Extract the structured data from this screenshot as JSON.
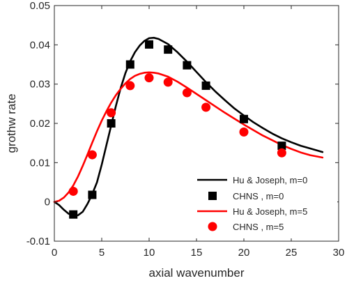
{
  "chart_data": {
    "type": "line",
    "title": "",
    "xlabel": "axial wavenumber",
    "ylabel": "grothw rate",
    "xlim": [
      0,
      30
    ],
    "ylim": [
      -0.01,
      0.05
    ],
    "xticks": [
      0,
      5,
      10,
      15,
      20,
      25,
      30
    ],
    "yticks": [
      -0.01,
      0,
      0.01,
      0.02,
      0.03,
      0.04,
      0.05
    ],
    "xtick_labels": [
      "0",
      "5",
      "10",
      "15",
      "20",
      "25",
      "30"
    ],
    "ytick_labels": [
      "-0.01",
      "0",
      "0.01",
      "0.02",
      "0.03",
      "0.04",
      "0.05"
    ],
    "grid": false,
    "legend_position": "bottom-right",
    "series": [
      {
        "name": "Hu & Joseph, m=0",
        "kind": "line",
        "color": "#000000",
        "x": [
          0,
          0.5,
          1,
          1.5,
          2,
          2.5,
          3,
          3.5,
          4,
          4.5,
          5,
          5.5,
          6,
          6.5,
          7,
          7.5,
          8,
          8.5,
          9,
          9.5,
          10,
          10.5,
          11,
          12,
          13,
          14,
          15,
          16,
          17,
          18,
          19,
          20,
          21,
          22,
          23,
          24,
          25,
          26,
          27,
          28.3
        ],
        "y": [
          0,
          -0.0008,
          -0.002,
          -0.003,
          -0.0035,
          -0.0034,
          -0.0025,
          -0.0005,
          0.002,
          0.005,
          0.0095,
          0.0145,
          0.0195,
          0.0245,
          0.029,
          0.0328,
          0.0358,
          0.0381,
          0.0398,
          0.041,
          0.0417,
          0.0418,
          0.0415,
          0.0402,
          0.0381,
          0.0357,
          0.0331,
          0.0305,
          0.0281,
          0.0259,
          0.0238,
          0.022,
          0.0203,
          0.0188,
          0.0174,
          0.0162,
          0.0152,
          0.0143,
          0.0136,
          0.0127
        ]
      },
      {
        "name": "CHNS , m=0",
        "kind": "scatter",
        "marker": "square",
        "color": "#000000",
        "x": [
          2,
          4,
          6,
          8,
          10,
          12,
          14,
          16,
          20,
          24
        ],
        "y": [
          -0.0032,
          0.0018,
          0.02,
          0.035,
          0.0401,
          0.0388,
          0.0348,
          0.0296,
          0.0211,
          0.0143
        ]
      },
      {
        "name": "Hu & Joseph, m=5",
        "kind": "line",
        "color": "#ff0000",
        "x": [
          0,
          0.5,
          1,
          1.5,
          2,
          2.5,
          3,
          3.5,
          4,
          4.5,
          5,
          5.5,
          6,
          6.5,
          7,
          7.5,
          8,
          8.5,
          9,
          9.5,
          10,
          10.5,
          11,
          12,
          13,
          14,
          15,
          16,
          17,
          18,
          19,
          20,
          21,
          22,
          23,
          24,
          25,
          26,
          27,
          28.3
        ],
        "y": [
          0,
          0.0003,
          0.0011,
          0.0024,
          0.0042,
          0.0065,
          0.0092,
          0.0121,
          0.0151,
          0.018,
          0.0207,
          0.0231,
          0.0253,
          0.0272,
          0.0288,
          0.0302,
          0.0313,
          0.0321,
          0.0326,
          0.0329,
          0.033,
          0.0329,
          0.0327,
          0.0319,
          0.0306,
          0.0291,
          0.0275,
          0.0259,
          0.0243,
          0.0227,
          0.0212,
          0.0197,
          0.0183,
          0.0169,
          0.0157,
          0.0145,
          0.0135,
          0.0126,
          0.0119,
          0.0113
        ]
      },
      {
        "name": "CHNS , m=5",
        "kind": "scatter",
        "marker": "circle",
        "color": "#ff0000",
        "x": [
          2,
          4,
          6,
          8,
          10,
          12,
          14,
          16,
          20,
          24
        ],
        "y": [
          0.0027,
          0.012,
          0.0227,
          0.0296,
          0.0316,
          0.0305,
          0.0278,
          0.0241,
          0.0178,
          0.0125
        ]
      }
    ]
  }
}
